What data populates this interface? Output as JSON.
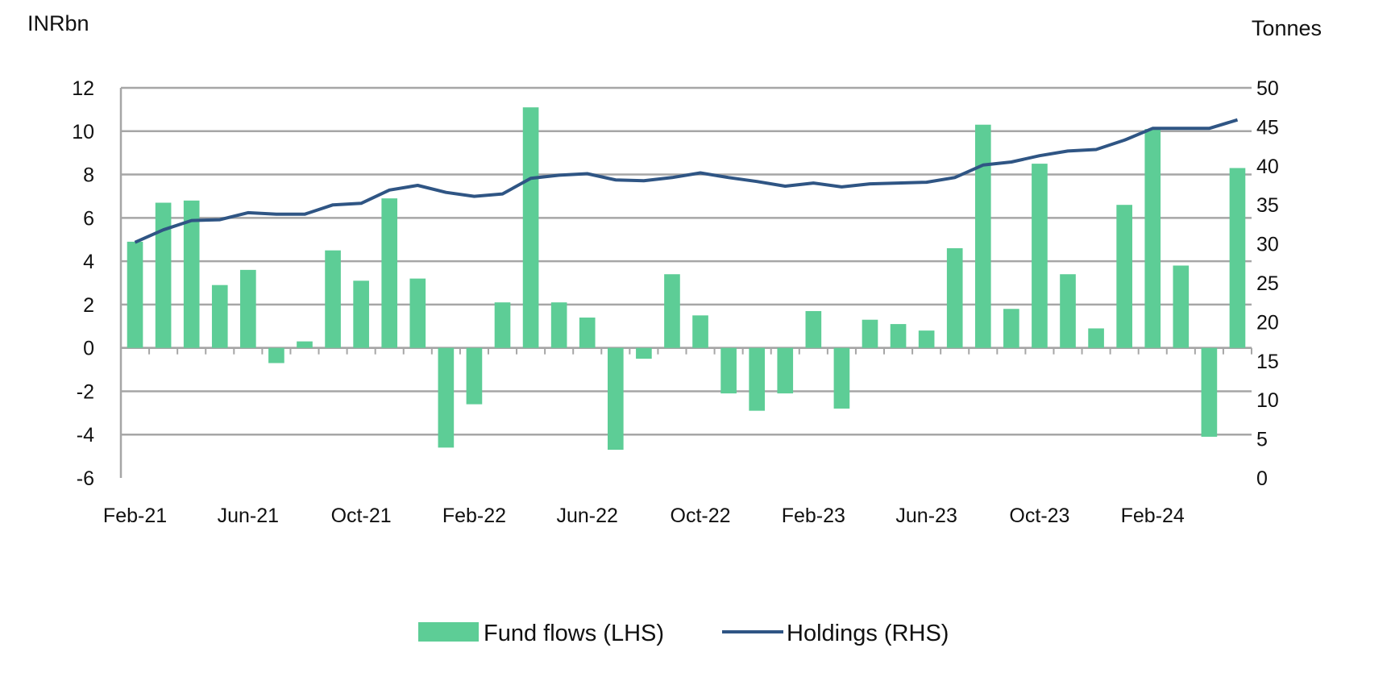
{
  "chart_data": {
    "type": "bar",
    "title": "",
    "ylabel_left": "INRbn",
    "ylabel_right": "Tonnes",
    "ylim_left": [
      -6,
      12
    ],
    "ylim_right": [
      0,
      50
    ],
    "yticks_left": [
      "12",
      "10",
      "8",
      "6",
      "4",
      "2",
      "0",
      "-2",
      "-4",
      "-6"
    ],
    "yticks_right": [
      "50",
      "45",
      "40",
      "35",
      "30",
      "25",
      "20",
      "15",
      "10",
      "5",
      "0"
    ],
    "x_tick_labels": [
      "Feb-21",
      "Jun-21",
      "Oct-21",
      "Feb-22",
      "Jun-22",
      "Oct-22",
      "Feb-23",
      "Jun-23",
      "Oct-23",
      "Feb-24"
    ],
    "categories": [
      "Feb-21",
      "Mar-21",
      "Apr-21",
      "May-21",
      "Jun-21",
      "Jul-21",
      "Aug-21",
      "Sep-21",
      "Oct-21",
      "Nov-21",
      "Dec-21",
      "Jan-22",
      "Feb-22",
      "Mar-22",
      "Apr-22",
      "May-22",
      "Jun-22",
      "Jul-22",
      "Aug-22",
      "Sep-22",
      "Oct-22",
      "Nov-22",
      "Dec-22",
      "Jan-23",
      "Feb-23",
      "Mar-23",
      "Apr-23",
      "May-23",
      "Jun-23",
      "Jul-23",
      "Aug-23",
      "Sep-23",
      "Oct-23",
      "Nov-23",
      "Dec-23",
      "Jan-24",
      "Feb-24",
      "Mar-24",
      "Apr-24",
      "May-24"
    ],
    "series": [
      {
        "name": "Fund flows (LHS)",
        "type": "bar",
        "axis": "left",
        "color": "#5dcd96",
        "values": [
          4.9,
          6.7,
          6.8,
          2.9,
          3.6,
          -0.7,
          0.3,
          4.5,
          3.1,
          6.9,
          3.2,
          -4.6,
          -2.6,
          2.1,
          11.1,
          2.1,
          1.4,
          -4.7,
          -0.5,
          3.4,
          1.5,
          -2.1,
          -2.9,
          -2.1,
          1.7,
          -2.8,
          1.3,
          1.1,
          0.8,
          4.6,
          10.3,
          1.8,
          8.5,
          3.4,
          0.9,
          6.6,
          10.1,
          3.8,
          -4.1,
          8.3
        ]
      },
      {
        "name": "Holdings (RHS)",
        "type": "line",
        "axis": "right",
        "color": "#2f5584",
        "values": [
          30.2,
          31.8,
          33.0,
          33.1,
          34.0,
          33.8,
          33.8,
          35.0,
          35.2,
          36.9,
          37.5,
          36.6,
          36.1,
          36.4,
          38.4,
          38.8,
          39.0,
          38.2,
          38.1,
          38.5,
          39.1,
          38.5,
          38.0,
          37.4,
          37.8,
          37.3,
          37.7,
          37.8,
          37.9,
          38.5,
          40.1,
          40.5,
          41.3,
          41.9,
          42.1,
          43.3,
          44.8,
          44.8,
          44.8,
          45.9
        ]
      }
    ],
    "legend_position": "bottom"
  }
}
